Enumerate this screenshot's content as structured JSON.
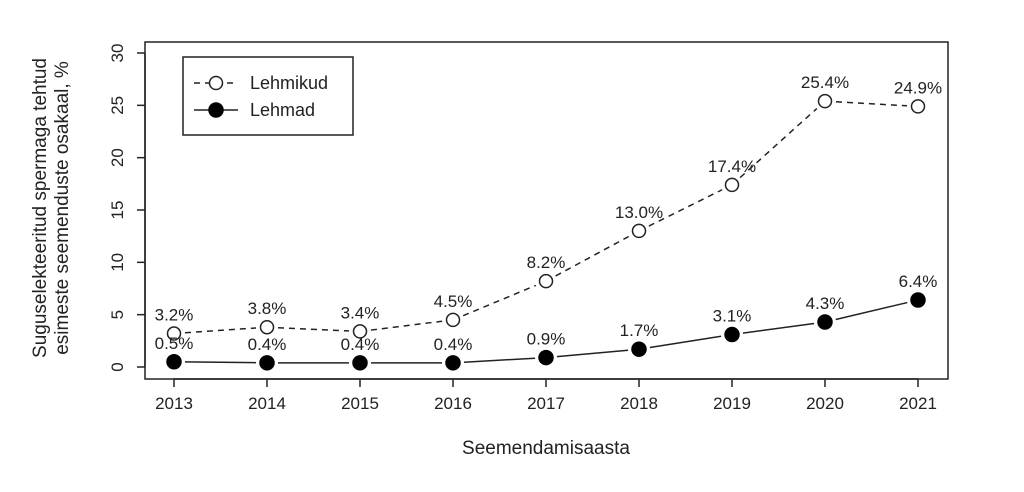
{
  "chart_data": {
    "type": "line",
    "title": "",
    "xlabel": "Seemendamisaasta",
    "ylabel_line1": "Suguselekteeritud spermaga tehtud",
    "ylabel_line2": "esimeste seemenduste osakaal, %",
    "x": [
      2013,
      2014,
      2015,
      2016,
      2017,
      2018,
      2019,
      2020,
      2021
    ],
    "x_tick_labels": [
      "2013",
      "2014",
      "2015",
      "2016",
      "2017",
      "2018",
      "2019",
      "2020",
      "2021"
    ],
    "ylim": [
      0,
      30
    ],
    "y_ticks": [
      0,
      5,
      10,
      15,
      20,
      25,
      30
    ],
    "y_tick_labels": [
      "0",
      "5",
      "10",
      "15",
      "20",
      "25",
      "30"
    ],
    "grid": false,
    "legend_position": "top-left",
    "series": [
      {
        "name": "Lehmikud",
        "style": "dashed-open-circle",
        "values": [
          3.2,
          3.8,
          3.4,
          4.5,
          8.2,
          13.0,
          17.4,
          25.4,
          24.9
        ],
        "labels": [
          "3.2%",
          "3.8%",
          "3.4%",
          "4.5%",
          "8.2%",
          "13.0%",
          "17.4%",
          "25.4%",
          "24.9%"
        ]
      },
      {
        "name": "Lehmad",
        "style": "solid-filled-circle",
        "values": [
          0.5,
          0.4,
          0.4,
          0.4,
          0.9,
          1.7,
          3.1,
          4.3,
          6.4
        ],
        "labels": [
          "0.5%",
          "0.4%",
          "0.4%",
          "0.4%",
          "0.9%",
          "1.7%",
          "3.1%",
          "4.3%",
          "6.4%"
        ]
      }
    ]
  }
}
